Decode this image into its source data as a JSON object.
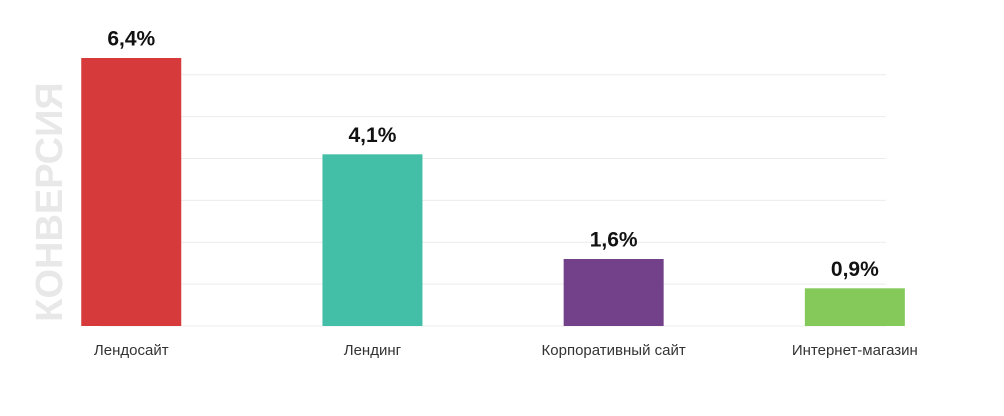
{
  "chart_data": {
    "type": "bar",
    "ylabel": "КОНВЕРСИЯ",
    "categories": [
      "Лендосайт",
      "Лендинг",
      "Корпоративный сайт",
      "Интернет-магазин"
    ],
    "values": [
      6.4,
      4.1,
      1.6,
      0.9
    ],
    "value_labels": [
      "6,4%",
      "4,1%",
      "1,6%",
      "0,9%"
    ],
    "colors": [
      "#d63a3a",
      "#43bfa8",
      "#73418a",
      "#84c95a"
    ],
    "ylim": [
      0,
      6.4
    ],
    "yticks": [
      0,
      1,
      2,
      3,
      4,
      5,
      6
    ],
    "grid": true
  }
}
